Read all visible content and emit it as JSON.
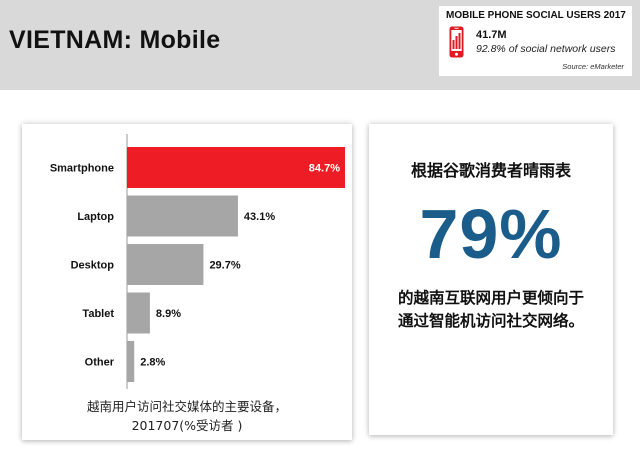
{
  "header": {
    "title": "VIETNAM: Mobile"
  },
  "stat_box": {
    "title": "MOBILE PHONE SOCIAL USERS 2017",
    "value": "41.7M",
    "description": "92.8% of social network users",
    "source": "Source: eMarketer",
    "icon": "smartphone-icon"
  },
  "chart_data": {
    "type": "bar",
    "orientation": "horizontal",
    "categories": [
      "Smartphone",
      "Laptop",
      "Desktop",
      "Tablet",
      "Other"
    ],
    "values": [
      84.7,
      43.1,
      29.7,
      8.9,
      2.8
    ],
    "value_labels": [
      "84.7%",
      "43.1%",
      "29.7%",
      "8.9%",
      "2.8%"
    ],
    "xlim": [
      0,
      84.7
    ],
    "colors": [
      "#ee1c25",
      "#a6a6a6",
      "#a6a6a6",
      "#a6a6a6",
      "#a6a6a6"
    ],
    "caption": [
      "越南用户访问社交媒体的主要设备，",
      "201707(%受访者 )"
    ]
  },
  "info": {
    "heading": "根据谷歌消费者晴雨表",
    "big_percent": "79%",
    "line1": "的越南互联网用户更倾向于",
    "line2": "通过智能机访问社交网络。",
    "accent_color": "#1b5d8a"
  }
}
